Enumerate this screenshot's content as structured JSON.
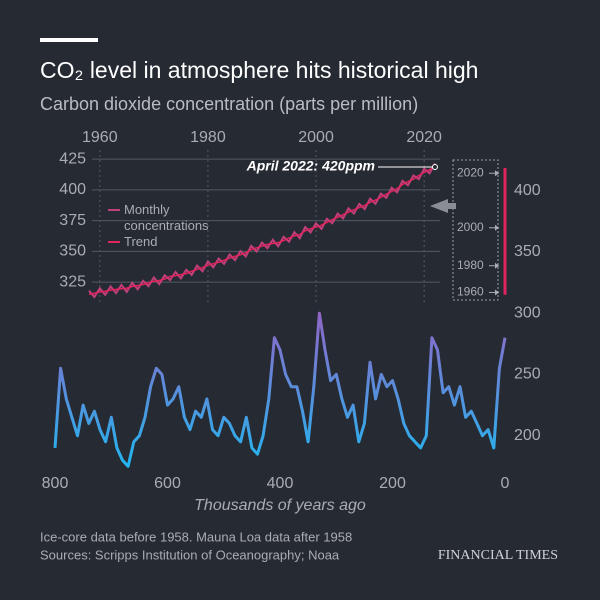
{
  "header": {
    "title": "CO₂ level in atmosphere hits historical high",
    "subtitle": "Carbon dioxide concentration (parts per million)"
  },
  "chart_data": [
    {
      "type": "line",
      "annotation": "April 2022: 420ppm",
      "x": [
        1958,
        1959,
        1960,
        1961,
        1962,
        1963,
        1964,
        1965,
        1966,
        1967,
        1968,
        1969,
        1970,
        1971,
        1972,
        1973,
        1974,
        1975,
        1976,
        1977,
        1978,
        1979,
        1980,
        1981,
        1982,
        1983,
        1984,
        1985,
        1986,
        1987,
        1988,
        1989,
        1990,
        1991,
        1992,
        1993,
        1994,
        1995,
        1996,
        1997,
        1998,
        1999,
        2000,
        2001,
        2002,
        2003,
        2004,
        2005,
        2006,
        2007,
        2008,
        2009,
        2010,
        2011,
        2012,
        2013,
        2014,
        2015,
        2016,
        2017,
        2018,
        2019,
        2020,
        2021,
        2022
      ],
      "series": [
        {
          "name": "Monthly concentrations",
          "color": "#c2407a",
          "values": [
            318.0,
            312.9,
            319.9,
            314.6,
            321.5,
            316.0,
            322.6,
            317.0,
            324.4,
            319.2,
            326.0,
            321.6,
            328.7,
            323.3,
            330.5,
            326.7,
            333.2,
            328.1,
            335.0,
            330.8,
            338.4,
            333.8,
            341.7,
            336.9,
            344.1,
            339.8,
            347.4,
            342.9,
            350.2,
            345.9,
            354.5,
            349.9,
            357.2,
            352.6,
            359.4,
            354.1,
            361.8,
            357.8,
            365.6,
            360.7,
            369.7,
            365.4,
            372.7,
            368.3,
            376.5,
            372.9,
            380.7,
            376.8,
            384.9,
            380.8,
            388.6,
            384.4,
            392.9,
            388.7,
            396.9,
            393.5,
            401.7,
            398.0,
            407.4,
            403.8,
            411.7,
            408.7,
            417.2,
            413.5,
            421.5
          ]
        },
        {
          "name": "Trend",
          "color": "#e0245e",
          "values": [
            315.0,
            315.9,
            316.9,
            317.6,
            318.5,
            319.0,
            319.6,
            320.0,
            321.4,
            322.2,
            323.0,
            324.6,
            325.7,
            326.3,
            327.5,
            329.7,
            330.2,
            331.1,
            332.0,
            333.8,
            335.4,
            336.8,
            338.7,
            339.9,
            341.1,
            342.8,
            344.4,
            345.9,
            347.2,
            348.9,
            351.5,
            352.9,
            354.2,
            355.6,
            356.4,
            357.1,
            358.8,
            360.8,
            362.6,
            363.7,
            366.7,
            368.4,
            369.7,
            371.3,
            373.5,
            375.9,
            377.7,
            379.8,
            381.9,
            383.8,
            385.6,
            387.4,
            389.9,
            391.7,
            393.9,
            396.5,
            398.7,
            401.0,
            404.4,
            406.8,
            408.7,
            411.7,
            414.2,
            416.5,
            418.5
          ]
        }
      ],
      "xlim": [
        1958,
        2026
      ],
      "xticks": [
        1960,
        1980,
        2000,
        2020
      ],
      "ylim": [
        310,
        430
      ],
      "yticks": [
        325,
        350,
        375,
        400,
        425
      ],
      "grid": true
    },
    {
      "type": "line",
      "xlabel": "Thousands of years ago",
      "x": [
        800,
        790,
        780,
        770,
        760,
        750,
        740,
        730,
        720,
        710,
        700,
        690,
        680,
        670,
        660,
        650,
        640,
        630,
        620,
        610,
        600,
        590,
        580,
        570,
        560,
        550,
        540,
        530,
        520,
        510,
        500,
        490,
        480,
        470,
        460,
        450,
        440,
        430,
        420,
        410,
        400,
        390,
        380,
        370,
        360,
        350,
        340,
        330,
        320,
        310,
        300,
        290,
        280,
        270,
        260,
        250,
        240,
        230,
        220,
        210,
        200,
        190,
        180,
        170,
        160,
        150,
        140,
        130,
        120,
        110,
        100,
        90,
        80,
        70,
        60,
        50,
        40,
        30,
        20,
        10,
        0
      ],
      "series": [
        {
          "name": "Ice-core",
          "color_low": "#1fb8f0",
          "color_high": "#9a5fc4",
          "values": [
            190,
            255,
            230,
            215,
            200,
            225,
            210,
            220,
            205,
            195,
            215,
            190,
            180,
            175,
            195,
            200,
            215,
            240,
            255,
            250,
            225,
            230,
            240,
            215,
            205,
            220,
            215,
            230,
            205,
            200,
            215,
            210,
            200,
            195,
            215,
            190,
            185,
            200,
            230,
            280,
            270,
            250,
            240,
            240,
            220,
            195,
            240,
            300,
            270,
            245,
            250,
            230,
            215,
            225,
            195,
            210,
            260,
            230,
            250,
            240,
            245,
            230,
            210,
            200,
            195,
            190,
            200,
            280,
            270,
            235,
            240,
            225,
            240,
            215,
            220,
            210,
            200,
            205,
            190,
            255,
            280
          ]
        }
      ],
      "xlim": [
        800,
        0
      ],
      "xticks": [
        800,
        600,
        400,
        200,
        0
      ],
      "ylim": [
        172,
        425
      ],
      "yticks": [
        200,
        250,
        300,
        350,
        400
      ],
      "year_ticks": [
        2020,
        2000,
        1980,
        1960
      ]
    }
  ],
  "footer": {
    "note": "Ice-core data before 1958. Mauna Loa data after 1958",
    "sources": "Sources: Scripps Institution of Oceanography; Noaa",
    "brand": "FINANCIAL TIMES"
  }
}
